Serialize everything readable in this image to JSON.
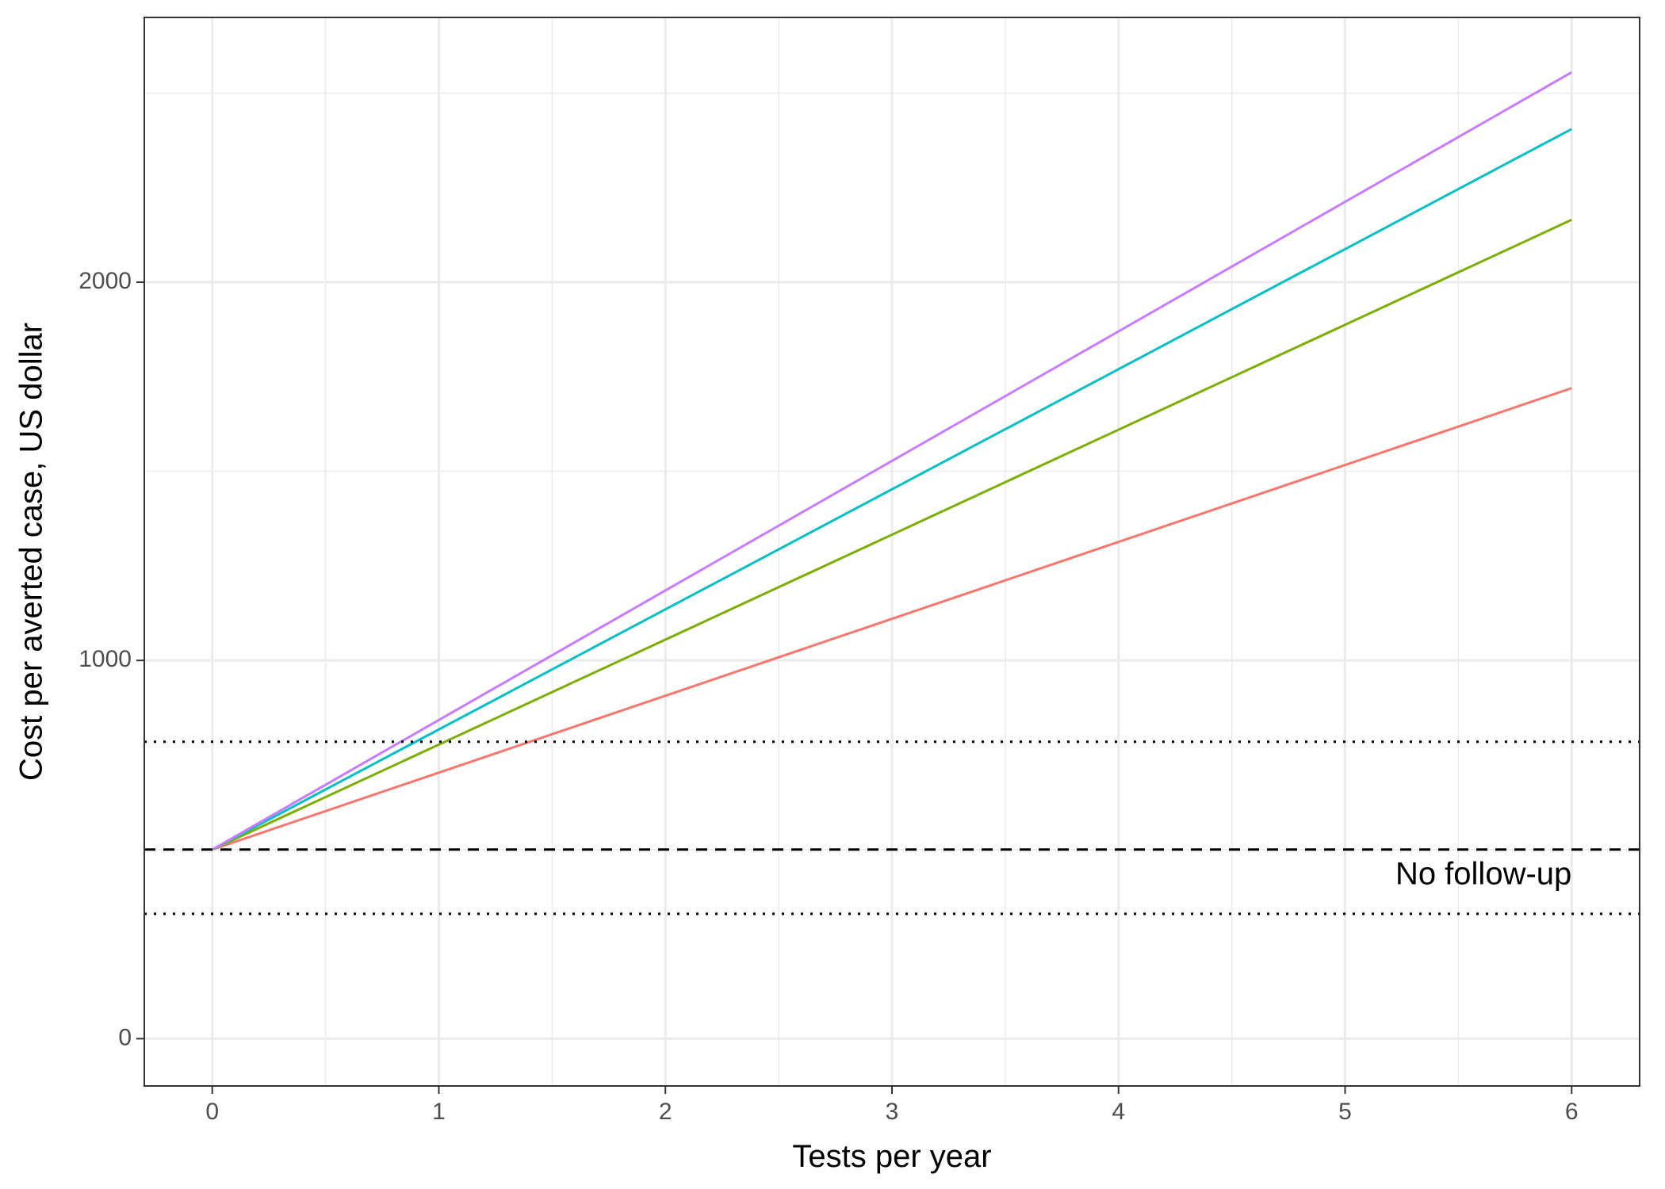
{
  "chart_data": {
    "type": "line",
    "xlabel": "Tests per year",
    "ylabel": "Cost per averted case, US dollar",
    "xlim": [
      -0.3,
      6.3
    ],
    "ylim": [
      -125,
      2700
    ],
    "x_ticks": [
      0,
      1,
      2,
      3,
      4,
      5,
      6
    ],
    "y_ticks": [
      0,
      1000,
      2000
    ],
    "grid": true,
    "legend": "none",
    "series": [
      {
        "color": "#F8766D",
        "x": [
          0,
          6
        ],
        "y": [
          500,
          1720
        ]
      },
      {
        "color": "#7CAE00",
        "x": [
          0,
          6
        ],
        "y": [
          500,
          2165
        ]
      },
      {
        "color": "#00BFC4",
        "x": [
          0,
          6
        ],
        "y": [
          500,
          2405
        ]
      },
      {
        "color": "#C77CFF",
        "x": [
          0,
          6
        ],
        "y": [
          500,
          2555
        ]
      }
    ],
    "reference_lines": [
      {
        "style": "dashed",
        "y": 500
      },
      {
        "style": "dotted",
        "y": 785
      },
      {
        "style": "dotted",
        "y": 330
      }
    ],
    "annotations": [
      {
        "text": "No follow-up",
        "x": 6,
        "y": 430
      }
    ]
  }
}
